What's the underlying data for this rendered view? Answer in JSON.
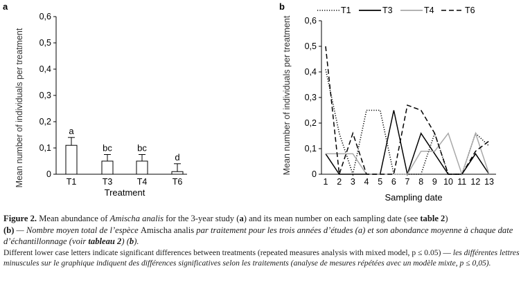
{
  "chart_data": [
    {
      "panel": "a",
      "type": "bar",
      "categories": [
        "T1",
        "T3",
        "T4",
        "T6"
      ],
      "values": [
        0.11,
        0.05,
        0.05,
        0.01
      ],
      "errors": [
        0.03,
        0.025,
        0.025,
        0.03
      ],
      "letters": [
        "a",
        "bc",
        "bc",
        "d"
      ],
      "xlabel": "Treatment",
      "ylabel": "Mean number of individuals per treatment",
      "ylim": [
        0,
        0.6
      ],
      "yticks": [
        "0",
        "0,1",
        "0,2",
        "0,3",
        "0,4",
        "0,5",
        "0,6"
      ],
      "grid": false
    },
    {
      "panel": "b",
      "type": "line",
      "x": [
        1,
        2,
        3,
        4,
        5,
        6,
        7,
        8,
        9,
        10,
        11,
        12,
        13
      ],
      "series": [
        {
          "name": "T1",
          "style": "dotted",
          "color": "#000000",
          "values": [
            0.41,
            0.16,
            0,
            0.25,
            0.25,
            0,
            0,
            0,
            0.16,
            0,
            0,
            0.16,
            0.11
          ]
        },
        {
          "name": "T3",
          "style": "solid",
          "color": "#000000",
          "values": [
            0.08,
            0,
            0,
            0,
            0,
            0.25,
            0,
            0.16,
            0.08,
            0,
            0,
            0.08,
            0
          ]
        },
        {
          "name": "T4",
          "style": "solid",
          "color": "#a8a8a8",
          "values": [
            0.08,
            0.08,
            0.08,
            0,
            0,
            0,
            0,
            0.09,
            0.09,
            0.16,
            0,
            0.16,
            0
          ]
        },
        {
          "name": "T6",
          "style": "dashed",
          "color": "#000000",
          "values": [
            0.5,
            0,
            0.16,
            0,
            0,
            0,
            0.27,
            0.25,
            0.16,
            0,
            0,
            0.09,
            0.13
          ]
        }
      ],
      "xlabel": "Sampling date",
      "ylabel": "Mean number of individuals per treatment",
      "ylim": [
        0,
        0.6
      ],
      "yticks": [
        "0",
        "0,1",
        "0,2",
        "0,3",
        "0,4",
        "0,5",
        "0,6"
      ],
      "legend": "top",
      "grid": false
    }
  ],
  "caption": {
    "figure_label": "Figure 2.",
    "line1_part1": " Mean abundance of ",
    "species": "Amischa analis",
    "line1_part2": " for the 3-year study (",
    "a_letter": "a",
    "line1_part3": ") and its mean number on each sampling date (see ",
    "table_ref": "table 2",
    "line1_part4": ")",
    "b_letter": "(b)",
    "fr_part1": " — Nombre moyen total de l’espèce ",
    "fr_species": "Amischa analis",
    "fr_part2": " par traitement pour les trois années d’études (a) et son abondance moyenne à chaque date d’échantillonnage (voir ",
    "fr_table": "tableau 2",
    "fr_part3": ") (",
    "fr_b": "b",
    "fr_part4": ").",
    "note_en": "Different lower case letters indicate significant differences between treatments (repeated measures analysis with mixed model, p ≤ 0.05)",
    "note_sep": " — ",
    "note_fr": "les différentes lettres minuscules sur le graphique indiquent des différences significatives selon les traitements (analyse de mesures répétées avec un modèle mixte, p ≤ 0,05)."
  }
}
